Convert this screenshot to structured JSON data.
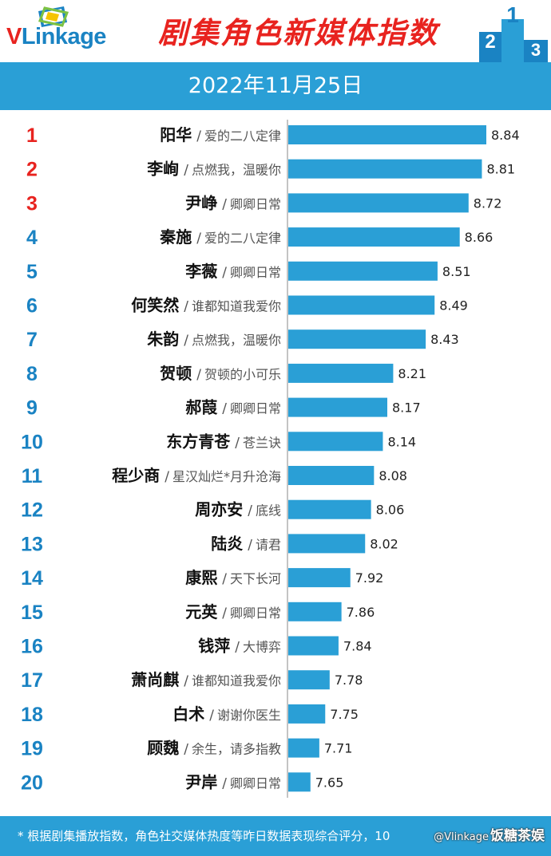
{
  "header": {
    "logo": "VLinkage",
    "title": "剧集角色新媒体指数",
    "date": "2022年11月25日",
    "podium_digits": [
      "2",
      "1",
      "3"
    ]
  },
  "colors": {
    "bar": "#2a9fd6",
    "band": "#2a9fd6",
    "rank_top3": "#e8231f",
    "rank_other": "#1a83c3",
    "logo_red": "#e8231f",
    "logo_blue": "#1a83c3"
  },
  "chart_data": {
    "type": "bar",
    "orientation": "horizontal",
    "categories": [
      {
        "rank": "1",
        "name": "阳华",
        "drama": "爱的二八定律"
      },
      {
        "rank": "2",
        "name": "李峋",
        "drama": "点燃我，温暖你"
      },
      {
        "rank": "3",
        "name": "尹峥",
        "drama": "卿卿日常"
      },
      {
        "rank": "4",
        "name": "秦施",
        "drama": "爱的二八定律"
      },
      {
        "rank": "5",
        "name": "李薇",
        "drama": "卿卿日常"
      },
      {
        "rank": "6",
        "name": "何笑然",
        "drama": "谁都知道我爱你"
      },
      {
        "rank": "7",
        "name": "朱韵",
        "drama": "点燃我，温暖你"
      },
      {
        "rank": "8",
        "name": "贺顿",
        "drama": "贺顿的小可乐"
      },
      {
        "rank": "9",
        "name": "郝葭",
        "drama": "卿卿日常"
      },
      {
        "rank": "10",
        "name": "东方青苍",
        "drama": "苍兰诀"
      },
      {
        "rank": "11",
        "name": "程少商",
        "drama": "星汉灿烂*月升沧海"
      },
      {
        "rank": "12",
        "name": "周亦安",
        "drama": "底线"
      },
      {
        "rank": "13",
        "name": "陆炎",
        "drama": "请君"
      },
      {
        "rank": "14",
        "name": "康熙",
        "drama": "天下长河"
      },
      {
        "rank": "15",
        "name": "元英",
        "drama": "卿卿日常"
      },
      {
        "rank": "16",
        "name": "钱萍",
        "drama": "大博弈"
      },
      {
        "rank": "17",
        "name": "萧尚麒",
        "drama": "谁都知道我爱你"
      },
      {
        "rank": "18",
        "name": "白术",
        "drama": "谢谢你医生"
      },
      {
        "rank": "19",
        "name": "顾魏",
        "drama": "余生，请多指教"
      },
      {
        "rank": "20",
        "name": "尹岸",
        "drama": "卿卿日常"
      }
    ],
    "values": [
      8.84,
      8.81,
      8.72,
      8.66,
      8.51,
      8.49,
      8.43,
      8.21,
      8.17,
      8.14,
      8.08,
      8.06,
      8.02,
      7.92,
      7.86,
      7.84,
      7.78,
      7.75,
      7.71,
      7.65
    ],
    "value_labels": [
      "8.84",
      "8.81",
      "8.72",
      "8.66",
      "8.51",
      "8.49",
      "8.43",
      "8.21",
      "8.17",
      "8.14",
      "8.08",
      "8.06",
      "8.02",
      "7.92",
      "7.86",
      "7.84",
      "7.78",
      "7.75",
      "7.71",
      "7.65"
    ],
    "separator": "/",
    "xlim": [
      7.5,
      8.9
    ],
    "grid": false,
    "legend": "none"
  },
  "footer": {
    "note": "* 根据剧集播放指数，角色社交媒体热度等昨日数据表现综合评分，10",
    "watermark": "饭糖茶娱",
    "watermark_sub": "@Vlinkage"
  }
}
